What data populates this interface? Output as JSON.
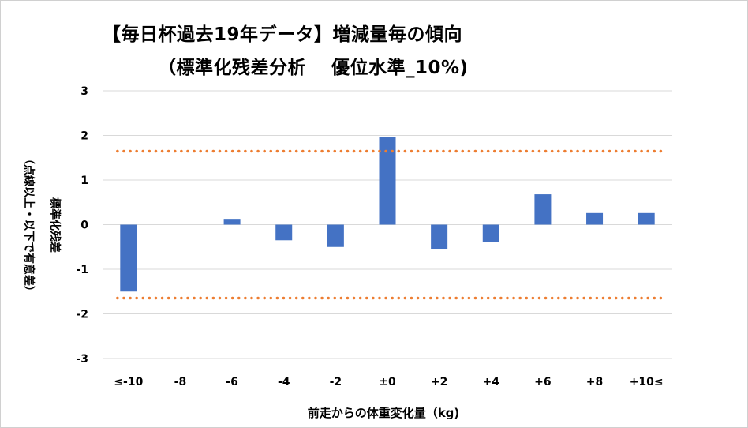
{
  "chart_data": {
    "type": "bar",
    "title": "【毎日杯過去19年データ】増減量毎の傾向",
    "subtitle": "（標準化残差分析　 優位水準_10%)",
    "xlabel": "前走からの体重変化量（kg)",
    "ylabel_main": "標準化残差",
    "ylabel_note": "（点線以上・以下で有意差）",
    "categories": [
      "≤-10",
      "-8",
      "-6",
      "-4",
      "-2",
      "±0",
      "+2",
      "+4",
      "+6",
      "+8",
      "+10≤"
    ],
    "values": [
      -1.5,
      0,
      0.13,
      -0.35,
      -0.5,
      1.96,
      -0.54,
      -0.39,
      0.68,
      0.26,
      0.26
    ],
    "ylim": [
      -3,
      3
    ],
    "yticks": [
      3,
      2,
      1,
      0,
      -1,
      -2,
      -3
    ],
    "threshold_lines": [
      1.645,
      -1.645
    ],
    "grid": true,
    "colors": {
      "bar": "#4472c4",
      "threshold": "#ed7d31",
      "grid": "#d9d9d9"
    }
  }
}
